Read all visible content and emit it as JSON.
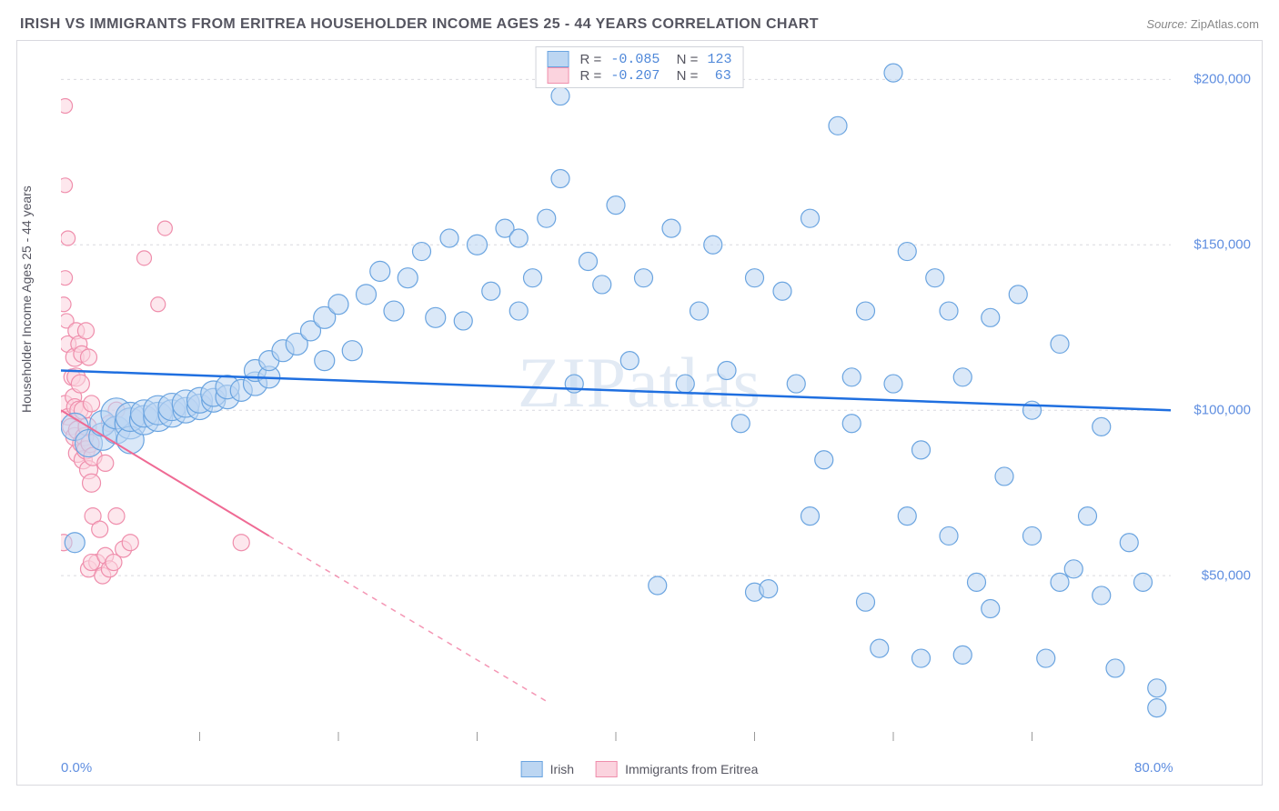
{
  "title": "IRISH VS IMMIGRANTS FROM ERITREA HOUSEHOLDER INCOME AGES 25 - 44 YEARS CORRELATION CHART",
  "source_label": "Source:",
  "source_value": "ZipAtlas.com",
  "watermark": "ZIPatlas",
  "ylabel": "Householder Income Ages 25 - 44 years",
  "chart": {
    "type": "scatter",
    "xlim": [
      0,
      80
    ],
    "ylim": [
      0,
      210000
    ],
    "x_end_labels": [
      {
        "x": 0,
        "text": "0.0%"
      },
      {
        "x": 80,
        "text": "80.0%"
      }
    ],
    "x_ticks": [
      10,
      20,
      30,
      40,
      50,
      60,
      70
    ],
    "y_ticks": [
      {
        "v": 50000,
        "label": "$50,000"
      },
      {
        "v": 100000,
        "label": "$100,000"
      },
      {
        "v": 150000,
        "label": "$150,000"
      },
      {
        "v": 200000,
        "label": "$200,000"
      }
    ],
    "grid_color": "#d9d9df",
    "background_color": "#ffffff"
  },
  "series": {
    "blue": {
      "label": "Irish",
      "fill": "#bcd6f2",
      "stroke": "#6aa4e0",
      "reg_color": "#1f6fe0",
      "R": "-0.085",
      "N": "123",
      "reg_line": {
        "x1": 0,
        "y1": 112000,
        "x2": 80,
        "y2": 100000
      },
      "points": [
        {
          "x": 1,
          "y": 60000,
          "r": 11
        },
        {
          "x": 1,
          "y": 95000,
          "r": 15
        },
        {
          "x": 2,
          "y": 90000,
          "r": 15
        },
        {
          "x": 3,
          "y": 92000,
          "r": 15
        },
        {
          "x": 3,
          "y": 96000,
          "r": 14
        },
        {
          "x": 4,
          "y": 94000,
          "r": 15
        },
        {
          "x": 4,
          "y": 99000,
          "r": 17
        },
        {
          "x": 5,
          "y": 96000,
          "r": 17
        },
        {
          "x": 5,
          "y": 91000,
          "r": 15
        },
        {
          "x": 5,
          "y": 98000,
          "r": 16
        },
        {
          "x": 6,
          "y": 97000,
          "r": 16
        },
        {
          "x": 6,
          "y": 99000,
          "r": 15
        },
        {
          "x": 7,
          "y": 98000,
          "r": 16
        },
        {
          "x": 7,
          "y": 100000,
          "r": 16
        },
        {
          "x": 8,
          "y": 99000,
          "r": 15
        },
        {
          "x": 8,
          "y": 101000,
          "r": 15
        },
        {
          "x": 9,
          "y": 100000,
          "r": 14
        },
        {
          "x": 9,
          "y": 102000,
          "r": 15
        },
        {
          "x": 10,
          "y": 101000,
          "r": 14
        },
        {
          "x": 10,
          "y": 103000,
          "r": 14
        },
        {
          "x": 11,
          "y": 103000,
          "r": 13
        },
        {
          "x": 11,
          "y": 105000,
          "r": 14
        },
        {
          "x": 12,
          "y": 104000,
          "r": 13
        },
        {
          "x": 12,
          "y": 107000,
          "r": 13
        },
        {
          "x": 13,
          "y": 106000,
          "r": 12
        },
        {
          "x": 14,
          "y": 108000,
          "r": 13
        },
        {
          "x": 14,
          "y": 112000,
          "r": 12
        },
        {
          "x": 15,
          "y": 110000,
          "r": 12
        },
        {
          "x": 15,
          "y": 115000,
          "r": 11
        },
        {
          "x": 16,
          "y": 118000,
          "r": 12
        },
        {
          "x": 17,
          "y": 120000,
          "r": 12
        },
        {
          "x": 18,
          "y": 124000,
          "r": 11
        },
        {
          "x": 19,
          "y": 128000,
          "r": 12
        },
        {
          "x": 19,
          "y": 115000,
          "r": 11
        },
        {
          "x": 20,
          "y": 132000,
          "r": 11
        },
        {
          "x": 21,
          "y": 118000,
          "r": 11
        },
        {
          "x": 22,
          "y": 135000,
          "r": 11
        },
        {
          "x": 23,
          "y": 142000,
          "r": 11
        },
        {
          "x": 24,
          "y": 130000,
          "r": 11
        },
        {
          "x": 25,
          "y": 140000,
          "r": 11
        },
        {
          "x": 26,
          "y": 148000,
          "r": 10
        },
        {
          "x": 27,
          "y": 128000,
          "r": 11
        },
        {
          "x": 28,
          "y": 152000,
          "r": 10
        },
        {
          "x": 29,
          "y": 127000,
          "r": 10
        },
        {
          "x": 30,
          "y": 150000,
          "r": 11
        },
        {
          "x": 31,
          "y": 136000,
          "r": 10
        },
        {
          "x": 32,
          "y": 155000,
          "r": 10
        },
        {
          "x": 33,
          "y": 130000,
          "r": 10
        },
        {
          "x": 33,
          "y": 152000,
          "r": 10
        },
        {
          "x": 34,
          "y": 140000,
          "r": 10
        },
        {
          "x": 35,
          "y": 158000,
          "r": 10
        },
        {
          "x": 36,
          "y": 195000,
          "r": 10
        },
        {
          "x": 36,
          "y": 170000,
          "r": 10
        },
        {
          "x": 37,
          "y": 108000,
          "r": 10
        },
        {
          "x": 38,
          "y": 145000,
          "r": 10
        },
        {
          "x": 39,
          "y": 138000,
          "r": 10
        },
        {
          "x": 40,
          "y": 162000,
          "r": 10
        },
        {
          "x": 41,
          "y": 115000,
          "r": 10
        },
        {
          "x": 42,
          "y": 140000,
          "r": 10
        },
        {
          "x": 43,
          "y": 47000,
          "r": 10
        },
        {
          "x": 44,
          "y": 155000,
          "r": 10
        },
        {
          "x": 45,
          "y": 108000,
          "r": 10
        },
        {
          "x": 46,
          "y": 130000,
          "r": 10
        },
        {
          "x": 47,
          "y": 150000,
          "r": 10
        },
        {
          "x": 48,
          "y": 112000,
          "r": 10
        },
        {
          "x": 49,
          "y": 96000,
          "r": 10
        },
        {
          "x": 50,
          "y": 140000,
          "r": 10
        },
        {
          "x": 50,
          "y": 45000,
          "r": 10
        },
        {
          "x": 51,
          "y": 46000,
          "r": 10
        },
        {
          "x": 52,
          "y": 136000,
          "r": 10
        },
        {
          "x": 53,
          "y": 108000,
          "r": 10
        },
        {
          "x": 54,
          "y": 68000,
          "r": 10
        },
        {
          "x": 54,
          "y": 158000,
          "r": 10
        },
        {
          "x": 55,
          "y": 85000,
          "r": 10
        },
        {
          "x": 56,
          "y": 186000,
          "r": 10
        },
        {
          "x": 57,
          "y": 110000,
          "r": 10
        },
        {
          "x": 57,
          "y": 96000,
          "r": 10
        },
        {
          "x": 58,
          "y": 130000,
          "r": 10
        },
        {
          "x": 58,
          "y": 42000,
          "r": 10
        },
        {
          "x": 59,
          "y": 28000,
          "r": 10
        },
        {
          "x": 60,
          "y": 202000,
          "r": 10
        },
        {
          "x": 60,
          "y": 108000,
          "r": 10
        },
        {
          "x": 61,
          "y": 148000,
          "r": 10
        },
        {
          "x": 61,
          "y": 68000,
          "r": 10
        },
        {
          "x": 62,
          "y": 88000,
          "r": 10
        },
        {
          "x": 62,
          "y": 25000,
          "r": 10
        },
        {
          "x": 63,
          "y": 140000,
          "r": 10
        },
        {
          "x": 64,
          "y": 62000,
          "r": 10
        },
        {
          "x": 64,
          "y": 130000,
          "r": 10
        },
        {
          "x": 65,
          "y": 26000,
          "r": 10
        },
        {
          "x": 65,
          "y": 110000,
          "r": 10
        },
        {
          "x": 66,
          "y": 48000,
          "r": 10
        },
        {
          "x": 67,
          "y": 128000,
          "r": 10
        },
        {
          "x": 67,
          "y": 40000,
          "r": 10
        },
        {
          "x": 68,
          "y": 80000,
          "r": 10
        },
        {
          "x": 69,
          "y": 135000,
          "r": 10
        },
        {
          "x": 70,
          "y": 62000,
          "r": 10
        },
        {
          "x": 70,
          "y": 100000,
          "r": 10
        },
        {
          "x": 71,
          "y": 25000,
          "r": 10
        },
        {
          "x": 72,
          "y": 120000,
          "r": 10
        },
        {
          "x": 72,
          "y": 48000,
          "r": 10
        },
        {
          "x": 73,
          "y": 52000,
          "r": 10
        },
        {
          "x": 74,
          "y": 68000,
          "r": 10
        },
        {
          "x": 75,
          "y": 44000,
          "r": 10
        },
        {
          "x": 75,
          "y": 95000,
          "r": 10
        },
        {
          "x": 76,
          "y": 22000,
          "r": 10
        },
        {
          "x": 77,
          "y": 60000,
          "r": 10
        },
        {
          "x": 78,
          "y": 48000,
          "r": 10
        },
        {
          "x": 79,
          "y": 16000,
          "r": 10
        },
        {
          "x": 79,
          "y": 10000,
          "r": 10
        }
      ]
    },
    "pink": {
      "label": "Immigrants from Eritrea",
      "fill": "#fbd3de",
      "stroke": "#ef8eac",
      "reg_color": "#ef6a94",
      "R": "-0.207",
      "N": "63",
      "reg_line_solid": {
        "x1": 0,
        "y1": 100000,
        "x2": 15,
        "y2": 62000
      },
      "reg_line_dash": {
        "x1": 15,
        "y1": 62000,
        "x2": 35,
        "y2": 12000
      },
      "points": [
        {
          "x": 0.3,
          "y": 192000,
          "r": 8
        },
        {
          "x": 0.3,
          "y": 168000,
          "r": 8
        },
        {
          "x": 0.5,
          "y": 152000,
          "r": 8
        },
        {
          "x": 0.3,
          "y": 140000,
          "r": 8
        },
        {
          "x": 0.2,
          "y": 132000,
          "r": 8
        },
        {
          "x": 0.4,
          "y": 127000,
          "r": 8
        },
        {
          "x": 0.5,
          "y": 120000,
          "r": 9
        },
        {
          "x": 0.3,
          "y": 102000,
          "r": 9
        },
        {
          "x": 0.5,
          "y": 98000,
          "r": 9
        },
        {
          "x": 0.2,
          "y": 60000,
          "r": 9
        },
        {
          "x": 0.7,
          "y": 95000,
          "r": 9
        },
        {
          "x": 0.8,
          "y": 110000,
          "r": 9
        },
        {
          "x": 0.9,
          "y": 104000,
          "r": 9
        },
        {
          "x": 1.0,
          "y": 101000,
          "r": 9
        },
        {
          "x": 1.0,
          "y": 116000,
          "r": 10
        },
        {
          "x": 1.1,
          "y": 124000,
          "r": 9
        },
        {
          "x": 1.0,
          "y": 92000,
          "r": 10
        },
        {
          "x": 1.1,
          "y": 110000,
          "r": 10
        },
        {
          "x": 1.2,
          "y": 94000,
          "r": 10
        },
        {
          "x": 1.3,
          "y": 100000,
          "r": 10
        },
        {
          "x": 1.2,
          "y": 87000,
          "r": 10
        },
        {
          "x": 1.3,
          "y": 120000,
          "r": 9
        },
        {
          "x": 1.4,
          "y": 108000,
          "r": 10
        },
        {
          "x": 1.5,
          "y": 90000,
          "r": 10
        },
        {
          "x": 1.5,
          "y": 117000,
          "r": 9
        },
        {
          "x": 1.6,
          "y": 85000,
          "r": 10
        },
        {
          "x": 1.6,
          "y": 100000,
          "r": 10
        },
        {
          "x": 1.7,
          "y": 92000,
          "r": 10
        },
        {
          "x": 1.8,
          "y": 88000,
          "r": 10
        },
        {
          "x": 1.8,
          "y": 124000,
          "r": 9
        },
        {
          "x": 1.9,
          "y": 95000,
          "r": 10
        },
        {
          "x": 2.0,
          "y": 82000,
          "r": 10
        },
        {
          "x": 2.0,
          "y": 116000,
          "r": 9
        },
        {
          "x": 2.1,
          "y": 90000,
          "r": 10
        },
        {
          "x": 2.2,
          "y": 78000,
          "r": 10
        },
        {
          "x": 2.2,
          "y": 102000,
          "r": 9
        },
        {
          "x": 2.3,
          "y": 86000,
          "r": 10
        },
        {
          "x": 2.3,
          "y": 68000,
          "r": 9
        },
        {
          "x": 2,
          "y": 52000,
          "r": 9
        },
        {
          "x": 2.6,
          "y": 54000,
          "r": 9
        },
        {
          "x": 3.0,
          "y": 50000,
          "r": 9
        },
        {
          "x": 2.2,
          "y": 54000,
          "r": 9
        },
        {
          "x": 2.8,
          "y": 64000,
          "r": 9
        },
        {
          "x": 3.2,
          "y": 56000,
          "r": 9
        },
        {
          "x": 3.5,
          "y": 52000,
          "r": 9
        },
        {
          "x": 3.8,
          "y": 54000,
          "r": 9
        },
        {
          "x": 4.0,
          "y": 68000,
          "r": 9
        },
        {
          "x": 4.5,
          "y": 58000,
          "r": 9
        },
        {
          "x": 5.0,
          "y": 60000,
          "r": 9
        },
        {
          "x": 3.2,
          "y": 84000,
          "r": 9
        },
        {
          "x": 3.5,
          "y": 96000,
          "r": 9
        },
        {
          "x": 4,
          "y": 100000,
          "r": 9
        },
        {
          "x": 6.0,
          "y": 146000,
          "r": 8
        },
        {
          "x": 7.0,
          "y": 132000,
          "r": 8
        },
        {
          "x": 7.5,
          "y": 155000,
          "r": 8
        },
        {
          "x": 13,
          "y": 60000,
          "r": 9
        }
      ]
    }
  },
  "bottom_legend": {
    "blue": "Irish",
    "pink": "Immigrants from Eritrea"
  }
}
